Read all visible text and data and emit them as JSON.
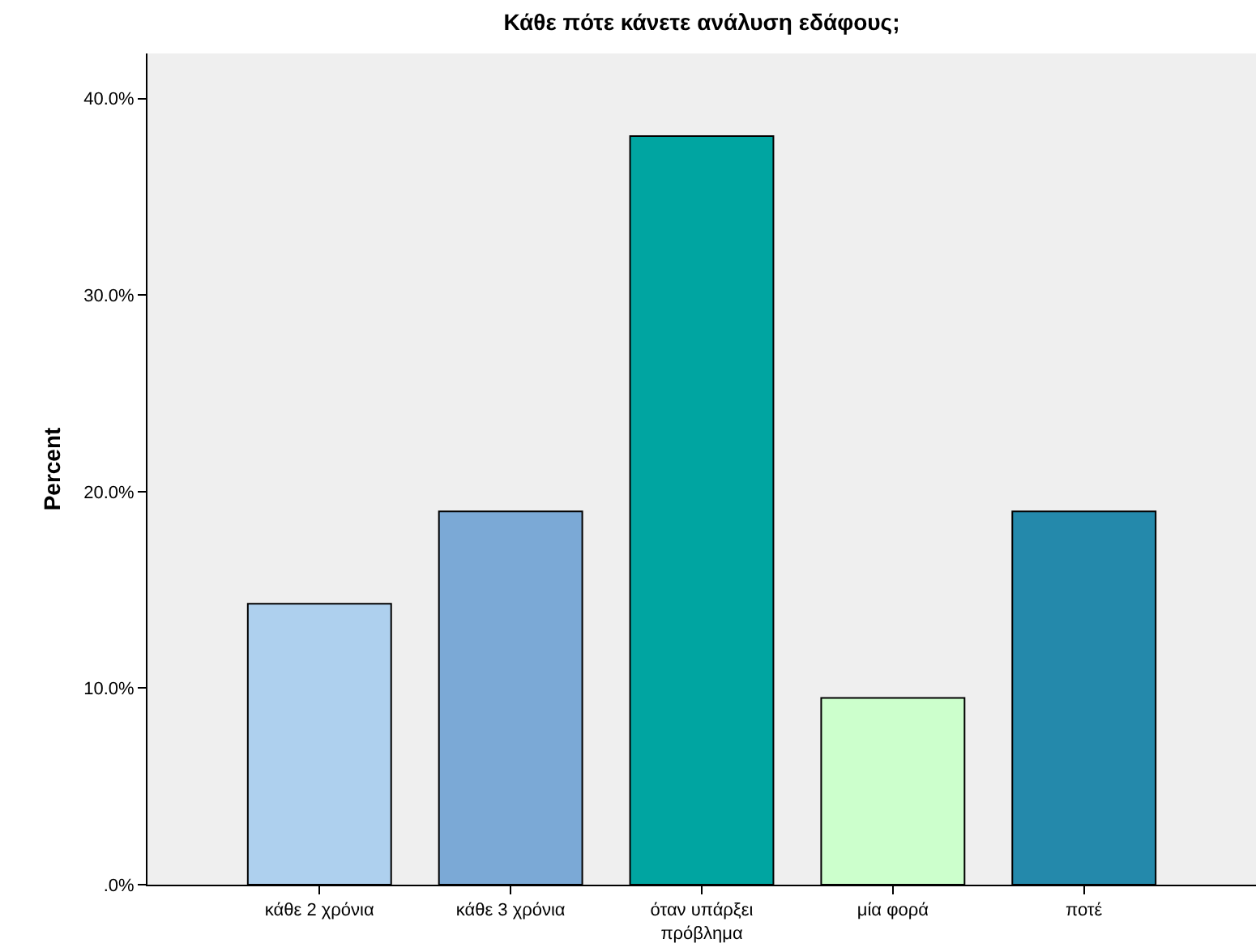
{
  "chart_data": {
    "type": "bar",
    "title": "Κάθε πότε κάνετε ανάλυση εδάφους;",
    "ylabel": "Percent",
    "categories": [
      "κάθε 2 χρόνια",
      "κάθε 3 χρόνια",
      "όταν υπάρξει πρόβλημα",
      "μία φορά",
      "ποτέ"
    ],
    "values": [
      14.3,
      19.0,
      38.1,
      9.5,
      19.0
    ],
    "colors": [
      "#aed0ee",
      "#7ba9d6",
      "#00a5a1",
      "#ccffcc",
      "#2489ab"
    ],
    "ylim": [
      0,
      42.3
    ],
    "yticks": [
      {
        "value": 0,
        "label": ".0%"
      },
      {
        "value": 10,
        "label": "10.0%"
      },
      {
        "value": 20,
        "label": "20.0%"
      },
      {
        "value": 30,
        "label": "30.0%"
      },
      {
        "value": 40,
        "label": "40.0%"
      }
    ]
  }
}
